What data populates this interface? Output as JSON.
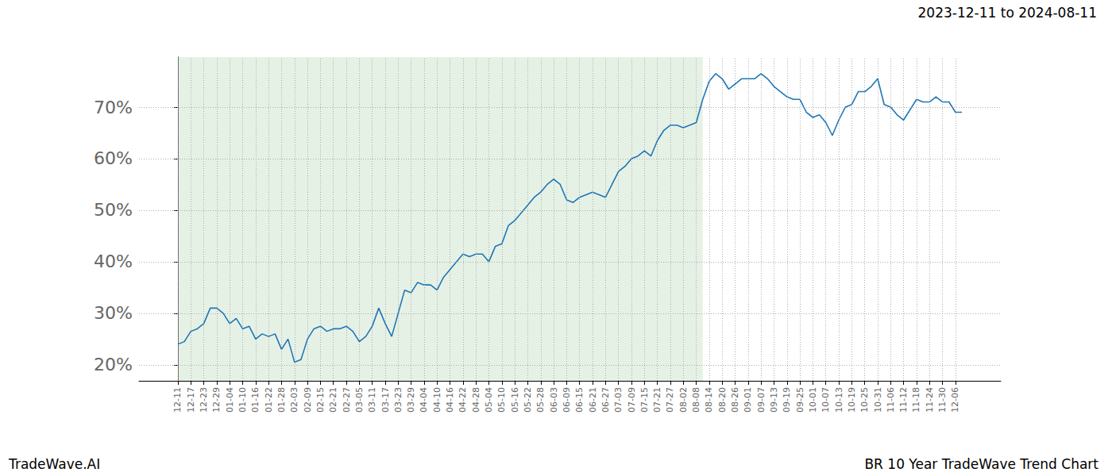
{
  "chart_data": {
    "type": "line",
    "title": "BR 10 Year TradeWave Trend Chart",
    "subtitle": "2023-12-11 to 2024-08-11",
    "annotations": [
      "TradeWave.AI"
    ],
    "categories": [
      "12-11",
      null,
      "12-17",
      null,
      "12-23",
      null,
      "12-29",
      null,
      "01-04",
      null,
      "01-10",
      null,
      "01-16",
      null,
      "01-22",
      null,
      "01-28",
      null,
      "02-03",
      null,
      "02-09",
      null,
      "02-15",
      null,
      "02-21",
      null,
      "02-27",
      null,
      "03-05",
      null,
      "03-11",
      null,
      "03-17",
      null,
      "03-23",
      null,
      "03-29",
      null,
      "04-04",
      null,
      "04-10",
      null,
      "04-16",
      null,
      "04-22",
      null,
      "04-28",
      null,
      "05-04",
      null,
      "05-10",
      null,
      "05-16",
      null,
      "05-22",
      null,
      "05-28",
      null,
      "06-03",
      null,
      "06-09",
      null,
      "06-15",
      null,
      "06-21",
      null,
      "06-27",
      null,
      "07-03",
      null,
      "07-09",
      null,
      "07-15",
      null,
      "07-21",
      null,
      "07-27",
      null,
      "08-02",
      null,
      "08-08",
      null,
      "08-14",
      null,
      "08-20",
      null,
      "08-26",
      null,
      "09-01",
      null,
      "09-07",
      null,
      "09-13",
      null,
      "09-19",
      null,
      "09-25",
      null,
      "10-01",
      null,
      "10-07",
      null,
      "10-13",
      null,
      "10-19",
      null,
      "10-25",
      null,
      "10-31",
      null,
      "11-06",
      null,
      "11-12",
      null,
      "11-18",
      null,
      "11-24",
      null,
      "11-30",
      null,
      "12-06",
      null
    ],
    "values": [
      24,
      24.5,
      26.5,
      27,
      28,
      31,
      31,
      30,
      28,
      29,
      27,
      27.5,
      25,
      26,
      25.5,
      26,
      23,
      25,
      20.5,
      21,
      25,
      27,
      27.5,
      26.5,
      27,
      27,
      27.5,
      26.5,
      24.5,
      25.5,
      27.5,
      31,
      28,
      25.5,
      30,
      34.5,
      34,
      36,
      35.5,
      35.5,
      34.5,
      37,
      38.5,
      40,
      41.5,
      41,
      41.5,
      41.5,
      40,
      43,
      43.5,
      47,
      48,
      49.5,
      51,
      52.5,
      53.5,
      55,
      56,
      55,
      52,
      51.5,
      52.5,
      53,
      53.5,
      53,
      52.5,
      55,
      57.5,
      58.5,
      60,
      60.5,
      61.5,
      60.5,
      63.5,
      65.5,
      66.5,
      66.5,
      66,
      66.5,
      67,
      71.5,
      75,
      76.5,
      75.5,
      73.5,
      74.5,
      75.5,
      75.5,
      75.5,
      76.5,
      75.5,
      74,
      73,
      72,
      71.5,
      71.5,
      69,
      68,
      68.5,
      67,
      64.5,
      67.5,
      70,
      70.5,
      73,
      73,
      74,
      75.5,
      70.5,
      70,
      68.5,
      67.5,
      69.5,
      71.5,
      71,
      71,
      72,
      71,
      71,
      69,
      69
    ],
    "highlight_range": [
      0,
      81
    ],
    "color": "#1f77b4",
    "ylim": [
      16.9,
      79.7
    ],
    "yticks": [
      {
        "value": 20,
        "label": "20%"
      },
      {
        "value": 30,
        "label": "30%"
      },
      {
        "value": 40,
        "label": "40%"
      },
      {
        "value": 50,
        "label": "50%"
      },
      {
        "value": 60,
        "label": "60%"
      },
      {
        "value": 70,
        "label": "70%"
      }
    ],
    "grid": true
  }
}
